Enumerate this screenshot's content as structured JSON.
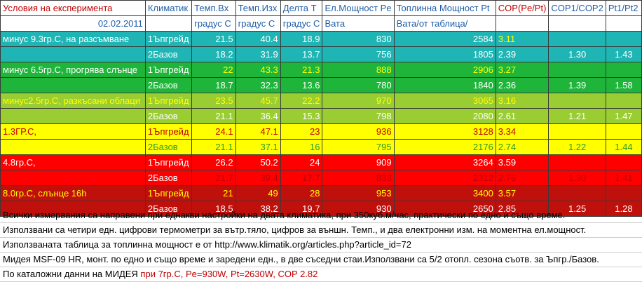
{
  "header": {
    "col0": "Условия на експеримента",
    "col1": "Климатик",
    "col2": "Темп.Вх",
    "col3": "Темп.Изх",
    "col4": "Делта Т",
    "col5": "Ел.Мощност Pe",
    "col6": "Топлинна Мощност Pt",
    "col7": "COP(Pe/Pt)",
    "col8": "COP1/COP2",
    "col9": "Pt1/Pt2"
  },
  "subheader": {
    "date": "02.02.2011",
    "unit2": "градус С",
    "unit3": "градус С",
    "unit4": "градус С",
    "unit5": "Вата",
    "unit6": "Вата/от таблица/"
  },
  "rows": [
    {
      "cond": "минус 9.3гр.С, на разсъмване",
      "klim": "1Ъпгрейд",
      "tin": "21.5",
      "tout": "40.4",
      "dt": "18.9",
      "pe": "830",
      "pt": "2584",
      "cop": "3.11",
      "cop12": "",
      "pt12": ""
    },
    {
      "cond": "",
      "klim": "2Базов",
      "tin": "18.2",
      "tout": "31.9",
      "dt": "13.7",
      "pe": "756",
      "pt": "1805",
      "cop": "2.39",
      "cop12": "1.30",
      "pt12": "1.43"
    },
    {
      "cond": "минус 6.5гр.С, прогрява слънце",
      "klim": "1Ъпгрейд",
      "tin": "22",
      "tout": "43.3",
      "dt": "21.3",
      "pe": "888",
      "pt": "2906",
      "cop": "3.27",
      "cop12": "",
      "pt12": ""
    },
    {
      "cond": "",
      "klim": "2Базов",
      "tin": "18.7",
      "tout": "32.3",
      "dt": "13.6",
      "pe": "780",
      "pt": "1840",
      "cop": "2.36",
      "cop12": "1.39",
      "pt12": "1.58"
    },
    {
      "cond": "минус2.5гр.С, разкъсани облаци",
      "klim": "1Ъпгрейд",
      "tin": "23.5",
      "tout": "45.7",
      "dt": "22.2",
      "pe": "970",
      "pt": "3065",
      "cop": "3.16",
      "cop12": "",
      "pt12": ""
    },
    {
      "cond": "",
      "klim": "2Базов",
      "tin": "21.1",
      "tout": "36.4",
      "dt": "15.3",
      "pe": "798",
      "pt": "2080",
      "cop": "2.61",
      "cop12": "1.21",
      "pt12": "1.47"
    },
    {
      "cond": "1.3ГР.С,",
      "klim": "1Ъпгрейд",
      "tin": "24.1",
      "tout": "47.1",
      "dt": "23",
      "pe": "936",
      "pt": "3128",
      "cop": "3.34",
      "cop12": "",
      "pt12": ""
    },
    {
      "cond": "",
      "klim": "2Базов",
      "tin": "21.1",
      "tout": "37.1",
      "dt": "16",
      "pe": "795",
      "pt": "2176",
      "cop": "2.74",
      "cop12": "1.22",
      "pt12": "1.44"
    },
    {
      "cond": "4.8гр.С,",
      "klim": "1Ъпгрейд",
      "tin": "26.2",
      "tout": "50.2",
      "dt": "24",
      "pe": "909",
      "pt": "3264",
      "cop": "3.59",
      "cop12": "",
      "pt12": ""
    },
    {
      "cond": "",
      "klim": "2Базов",
      "tin": "21.7",
      "tout": "39.4",
      "dt": "17.7",
      "pe": "838",
      "pt": "2312",
      "cop": "2.76",
      "cop12": "1.30",
      "pt12": "1.41"
    },
    {
      "cond": "8.0гр.С, слънце 16h",
      "klim": "1Ъпгрейд",
      "tin": "21",
      "tout": "49",
      "dt": "28",
      "pe": "953",
      "pt": "3400",
      "cop": "3.57",
      "cop12": "",
      "pt12": ""
    },
    {
      "cond": "",
      "klim": "2Базов",
      "tin": "18.5",
      "tout": "38.2",
      "dt": "19.7",
      "pe": "930",
      "pt": "2650",
      "cop": "2.85",
      "cop12": "1.25",
      "pt12": "1.28"
    }
  ],
  "colors": {
    "teal": "#1fb5b5",
    "green": "#1eb53a",
    "lime": "#9acd32",
    "yellow": "#ffff00",
    "red": "#ff0000",
    "darkred": "#c0100c"
  },
  "notes": {
    "n1": "Всички измервания са направени при еднакви настройки на двата климатика, при 350куб.м/час, практически по едно и също време.",
    "n2": "Използвани са четири едн. цифрови термометри за вътр.тяло, цифров за външн. Темп., и два електронни изм. на моментна ел.мощност.",
    "n3": "Използваната таблица за топлинна мощност е от     http://www.klimatik.org/articles.php?article_id=72",
    "n4": "Мидея MSF-09 HR, монт. по едно и също време и заредени едн., в две съседни стаи.Използвани са 5/2 отопл. сезона съотв. за Ъпгр./Базов.",
    "n5a": "По каталожни данни на МИДЕЯ ",
    "n5b": "при 7гр.С,  Pe=930W, Pt=2630W, COP 2.82"
  }
}
